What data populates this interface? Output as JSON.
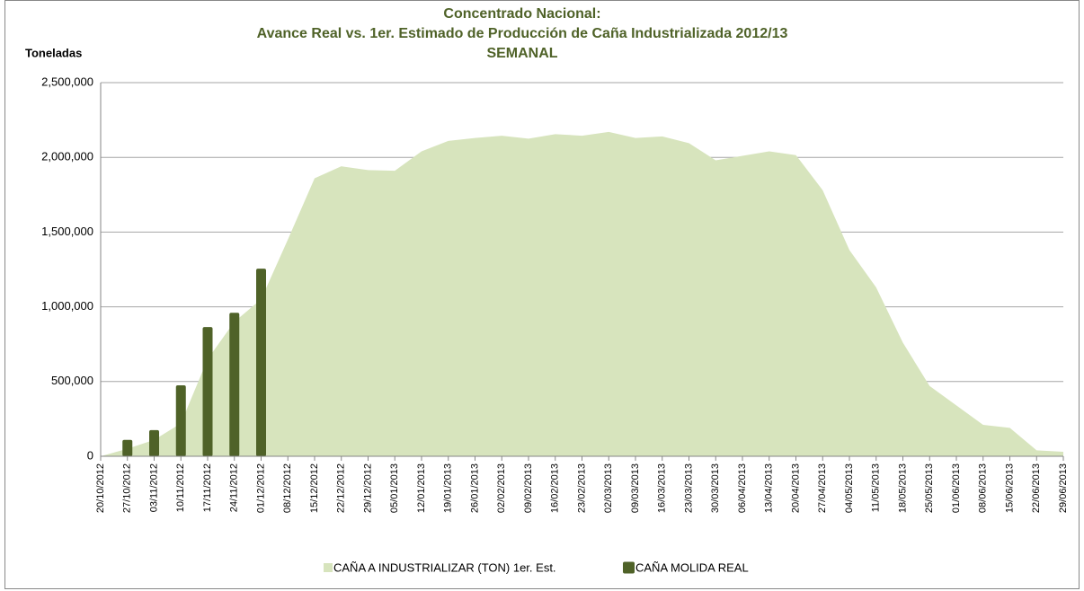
{
  "chart_data": {
    "type": "area",
    "title": [
      "Concentrado Nacional:",
      "Avance Real vs. 1er. Estimado de Producción de Caña Industrializada 2012/13",
      "SEMANAL"
    ],
    "y_label": "Toneladas",
    "categories": [
      "20/10/2012",
      "27/10/2012",
      "03/11/2012",
      "10/11/2012",
      "17/11/2012",
      "24/11/2012",
      "01/12/2012",
      "08/12/2012",
      "15/12/2012",
      "22/12/2012",
      "29/12/2012",
      "05/01/2013",
      "12/01/2013",
      "19/01/2013",
      "26/01/2013",
      "02/02/2013",
      "09/02/2013",
      "16/02/2013",
      "23/02/2013",
      "02/03/2013",
      "09/03/2013",
      "16/03/2013",
      "23/03/2013",
      "30/03/2013",
      "06/04/2013",
      "13/04/2013",
      "20/04/2013",
      "27/04/2013",
      "04/05/2013",
      "11/05/2013",
      "18/05/2013",
      "25/05/2013",
      "01/06/2013",
      "08/06/2013",
      "15/06/2013",
      "22/06/2013",
      "29/06/2013"
    ],
    "series": [
      {
        "name": "CAÑA A INDUSTRIALIZAR (TON) 1er. Est.",
        "type": "area",
        "color": "#d7e4bd",
        "values": [
          0,
          50000,
          110000,
          220000,
          650000,
          900000,
          1050000,
          1450000,
          1860000,
          1940000,
          1915000,
          1910000,
          2040000,
          2110000,
          2130000,
          2145000,
          2125000,
          2155000,
          2145000,
          2170000,
          2130000,
          2140000,
          2095000,
          1980000,
          2010000,
          2040000,
          2015000,
          1780000,
          1380000,
          1130000,
          760000,
          470000,
          340000,
          210000,
          190000,
          40000,
          30000
        ]
      },
      {
        "name": "CAÑA MOLIDA REAL",
        "type": "bar",
        "color": "#4f6228",
        "values": [
          null,
          110000,
          175000,
          475000,
          865000,
          960000,
          1255000,
          null,
          null,
          null,
          null,
          null,
          null,
          null,
          null,
          null,
          null,
          null,
          null,
          null,
          null,
          null,
          null,
          null,
          null,
          null,
          null,
          null,
          null,
          null,
          null,
          null,
          null,
          null,
          null,
          null,
          null
        ]
      }
    ],
    "ylim": [
      0,
      2500000
    ],
    "yticks": [
      0,
      {
        "value": 500000,
        "label": "500,000"
      },
      {
        "value": 1000000,
        "label": "1,000,000"
      },
      {
        "value": 1500000,
        "label": "1,500,000"
      },
      {
        "value": 2000000,
        "label": "2,000,000"
      },
      {
        "value": 2500000,
        "label": "2,500,000"
      }
    ],
    "grid": true,
    "legend": "bottom"
  }
}
